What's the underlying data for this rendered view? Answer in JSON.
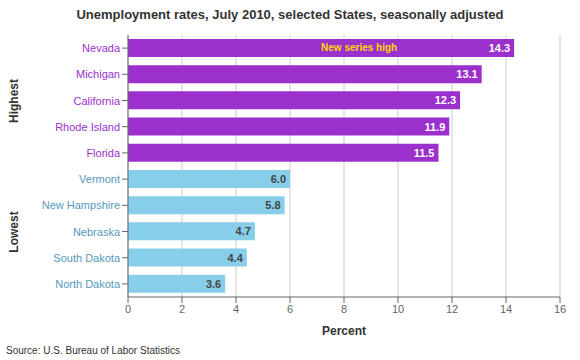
{
  "chart_data": {
    "type": "bar",
    "orientation": "horizontal",
    "title": "Unemployment rates, July 2010, selected States, seasonally adjusted",
    "categories": [
      "Nevada",
      "Michigan",
      "California",
      "Rhode Island",
      "Florida",
      "Vermont",
      "New Hampshire",
      "Nebraska",
      "South Dakota",
      "North Dakota"
    ],
    "values": [
      14.3,
      13.1,
      12.3,
      11.9,
      11.5,
      6.0,
      5.8,
      4.7,
      4.4,
      3.6
    ],
    "value_labels": [
      "14.3",
      "13.1",
      "12.3",
      "11.9",
      "11.5",
      "6.0",
      "5.8",
      "4.7",
      "4.4",
      "3.6"
    ],
    "data_labels": true,
    "colors": [
      "#9B30CC",
      "#9B30CC",
      "#9B30CC",
      "#9B30CC",
      "#9B30CC",
      "#87CEEB",
      "#87CEEB",
      "#87CEEB",
      "#87CEEB",
      "#87CEEB"
    ],
    "value_label_colors": [
      "#FFFFFF",
      "#FFFFFF",
      "#FFFFFF",
      "#FFFFFF",
      "#FFFFFF",
      "#444444",
      "#444444",
      "#444444",
      "#444444",
      "#444444"
    ],
    "tick_label_colors": [
      "#9B30CC",
      "#9B30CC",
      "#9B30CC",
      "#9B30CC",
      "#9B30CC",
      "#5599BB",
      "#5599BB",
      "#5599BB",
      "#5599BB",
      "#5599BB"
    ],
    "group_labels": [
      {
        "text": "Highest",
        "from": "Nevada",
        "to": "Florida"
      },
      {
        "text": "Lowest",
        "from": "Vermont",
        "to": "North Dakota"
      }
    ],
    "annotations": [
      {
        "text": "New series high",
        "category": "Nevada",
        "color": "#FFD700"
      }
    ],
    "xlabel": "Percent",
    "source": "Source: U.S. Bureau of Labor Statistics",
    "xlim": [
      0,
      16
    ],
    "xticks": [
      0,
      2,
      4,
      6,
      8,
      10,
      12,
      14,
      16
    ],
    "grid": true
  }
}
